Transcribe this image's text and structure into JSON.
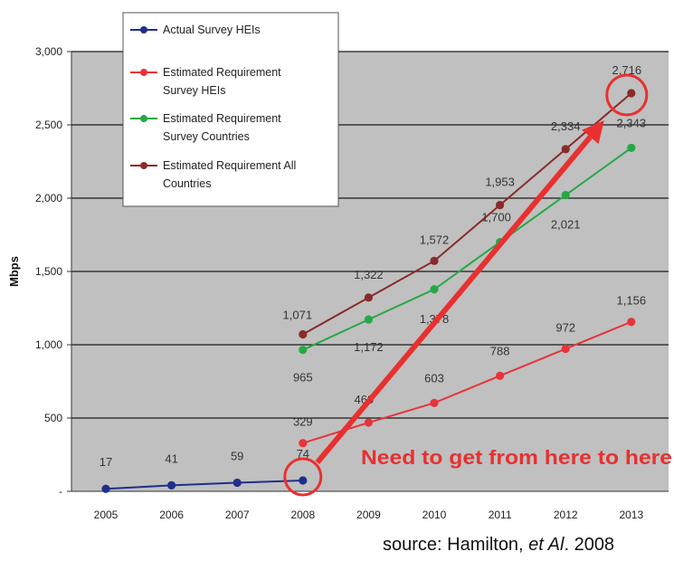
{
  "chart_data": {
    "type": "line",
    "xlabel": "",
    "ylabel": "Mbps",
    "ylim": [
      0,
      3000
    ],
    "yticks": [
      0,
      500,
      1000,
      1500,
      2000,
      2500,
      3000
    ],
    "ytick_labels": [
      "-",
      "500",
      "1,000",
      "1,500",
      "2,000",
      "2,500",
      "3,000"
    ],
    "categories": [
      "2005",
      "2006",
      "2007",
      "2008",
      "2009",
      "2010",
      "2011",
      "2012",
      "2013"
    ],
    "grid": "horizontal",
    "legend_position": "top-left",
    "series": [
      {
        "name": "Actual Survey HEIs",
        "color": "#1f2f8a",
        "values": [
          17,
          41,
          59,
          74,
          null,
          null,
          null,
          null,
          null
        ],
        "labels": [
          "17",
          "41",
          "59",
          "74",
          "",
          "",
          "",
          "",
          ""
        ]
      },
      {
        "name": "Estimated Requirement Survey HEIs",
        "color": "#e8333a",
        "values": [
          null,
          null,
          null,
          329,
          469,
          603,
          788,
          972,
          1156
        ],
        "labels": [
          "",
          "",
          "",
          "329",
          "469",
          "603",
          "788",
          "972",
          "1,156"
        ]
      },
      {
        "name": "Estimated Requirement Survey Countries",
        "color": "#26a844",
        "values": [
          null,
          null,
          null,
          965,
          1172,
          1378,
          1700,
          2021,
          2343
        ],
        "labels": [
          "",
          "",
          "",
          "965",
          "1,172",
          "1,378",
          "1,700",
          "2,021",
          "2,343"
        ]
      },
      {
        "name": "Estimated Requirement All Countries",
        "color": "#8a2a2a",
        "values": [
          null,
          null,
          null,
          1071,
          1322,
          1572,
          1953,
          2334,
          2716
        ],
        "labels": [
          "",
          "",
          "",
          "1,071",
          "1,322",
          "1,572",
          "1,953",
          "2,334",
          "2,716"
        ]
      }
    ],
    "legend_lines": [
      [
        "Actual Survey HEIs"
      ],
      [
        "Estimated Requirement",
        "Survey HEIs"
      ],
      [
        "Estimated Requirement",
        "Survey Countries"
      ],
      [
        "Estimated Requirement All",
        "Countries"
      ]
    ],
    "annotation": {
      "text": "Need to get from here to here",
      "color": "#e83030",
      "from_point": {
        "x": "2008",
        "y": 74
      },
      "to_point": {
        "x": "2013",
        "y": 2716
      }
    }
  },
  "source_text": "source: Hamilton, et Al. 2008",
  "source_parts": {
    "pre": "source: Hamilton, ",
    "italic": "et Al",
    "post": ". 2008"
  }
}
